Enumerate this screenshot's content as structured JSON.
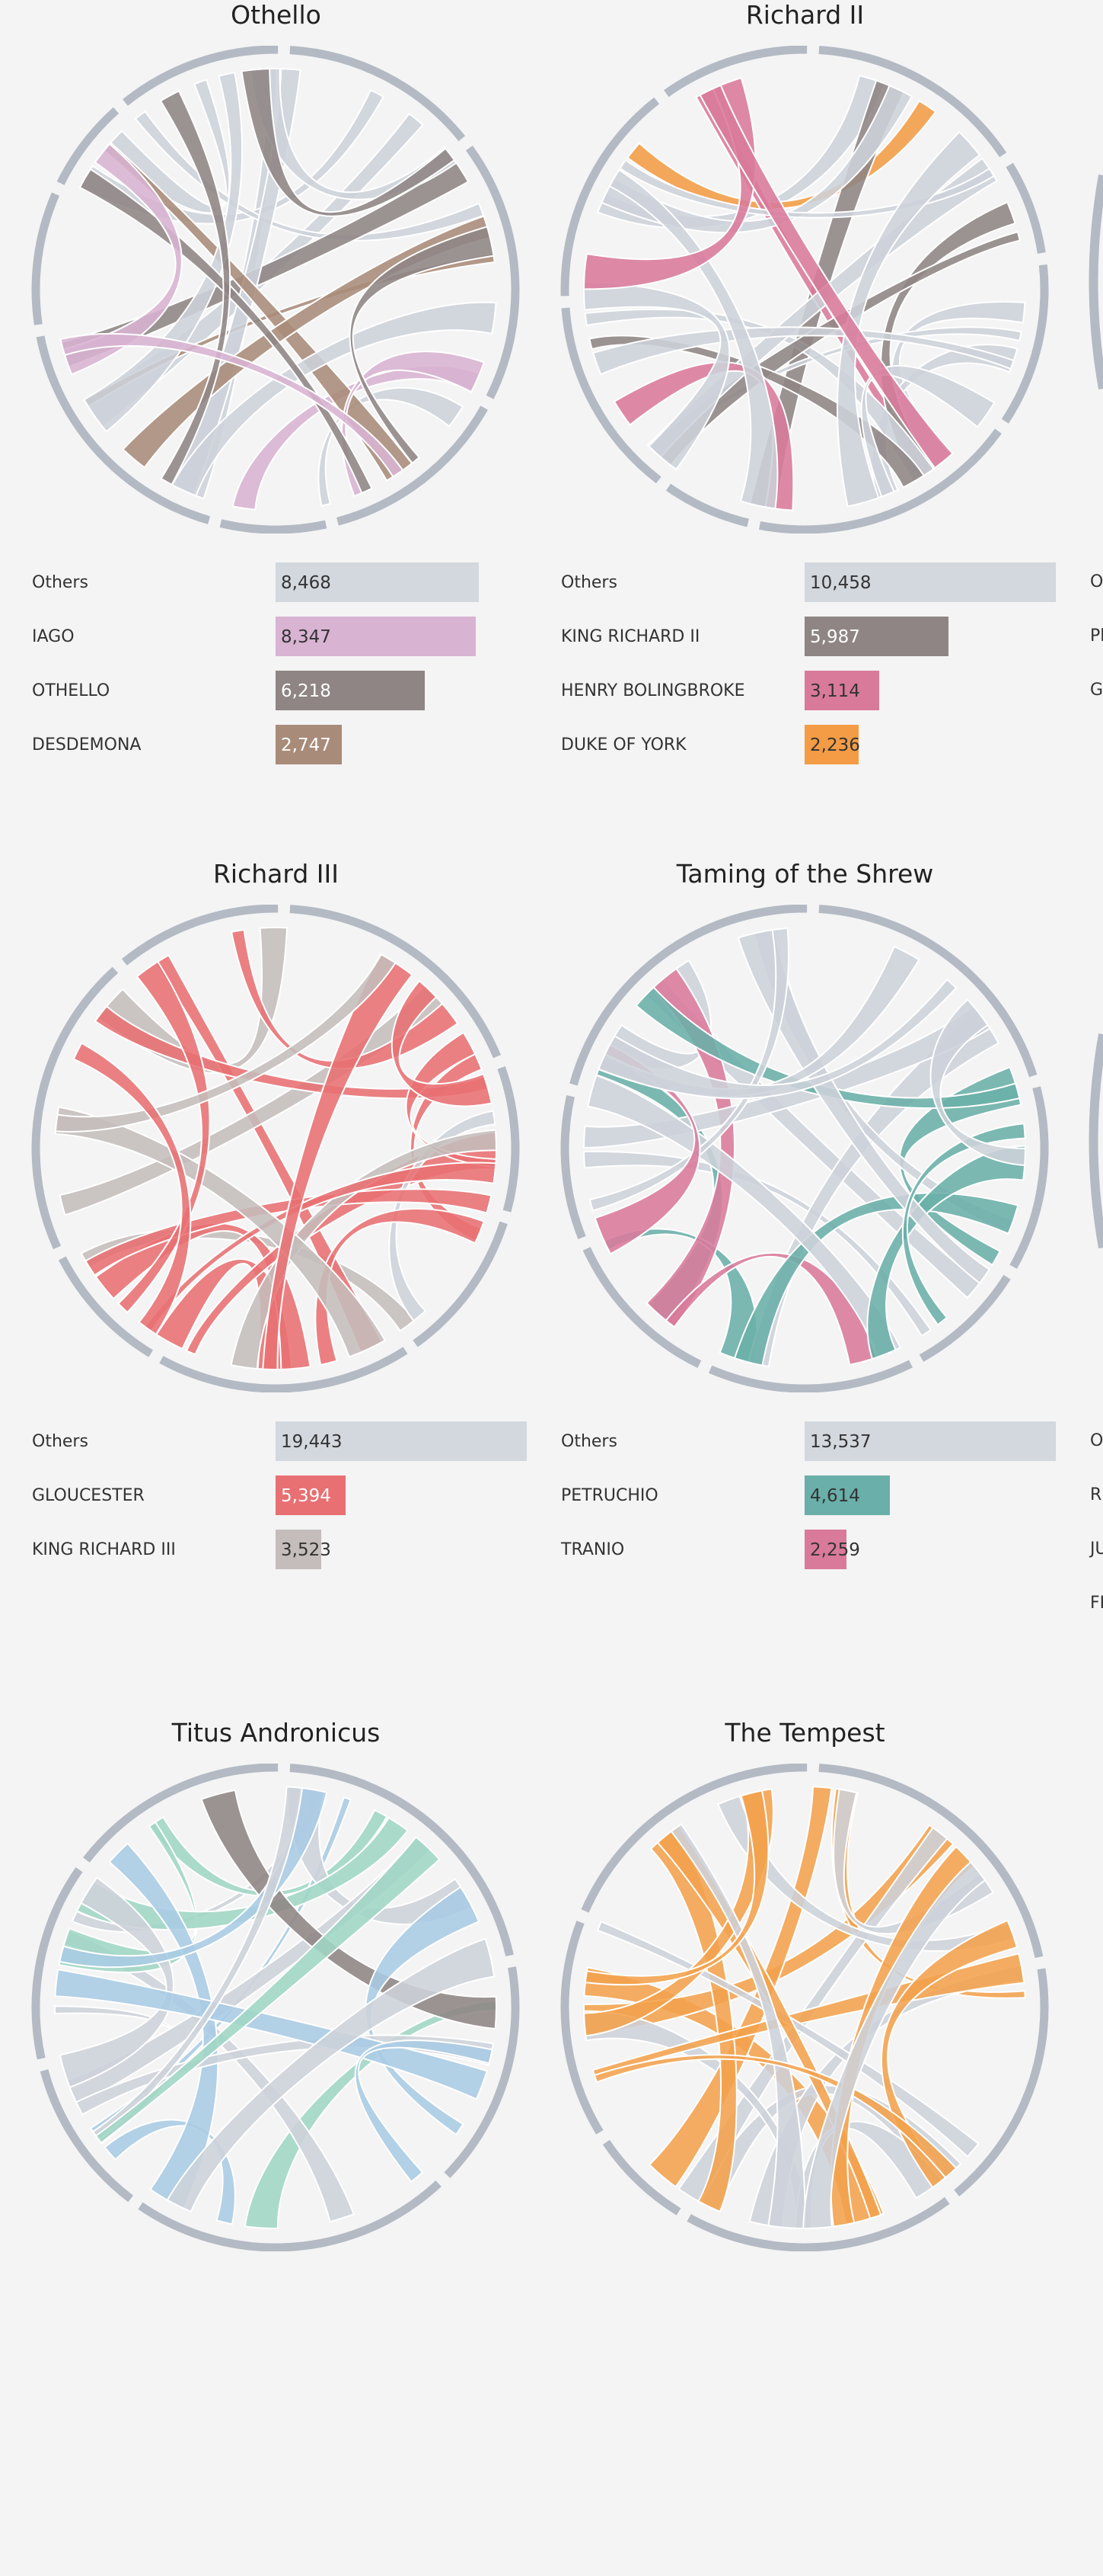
{
  "chart_data": [
    {
      "type": "bar",
      "title": "Othello",
      "categories": [
        "Others",
        "IAGO",
        "OTHELLO",
        "DESDEMONA"
      ],
      "values": [
        8468,
        8347,
        6218,
        2747
      ],
      "value_labels": [
        "8,468",
        "8,347",
        "6,218",
        "2,747"
      ],
      "colors": [
        "#d3d8df",
        "#d8b3d2",
        "#8e8584",
        "#a88b79"
      ],
      "text_colors": [
        "#333333",
        "#333333",
        "#ffffff",
        "#ffffff"
      ],
      "max": 10458
    },
    {
      "type": "bar",
      "title": "Richard II",
      "categories": [
        "Others",
        "KING RICHARD II",
        "HENRY BOLINGBROKE",
        "DUKE OF YORK"
      ],
      "values": [
        10458,
        5987,
        3114,
        2236
      ],
      "value_labels": [
        "10,458",
        "5,987",
        "3,114",
        "2,236"
      ],
      "colors": [
        "#d3d8df",
        "#8e8584",
        "#d97a9b",
        "#f39c45"
      ],
      "text_colors": [
        "#333333",
        "#ffffff",
        "#333333",
        "#333333"
      ],
      "max": 10458
    },
    {
      "type": "bar",
      "title": "Richard III",
      "categories": [
        "Others",
        "GLOUCESTER",
        "KING RICHARD III"
      ],
      "values": [
        19443,
        5394,
        3523
      ],
      "value_labels": [
        "19,443",
        "5,394",
        "3,523"
      ],
      "colors": [
        "#d3d8df",
        "#e86f72",
        "#c4bdbb"
      ],
      "text_colors": [
        "#333333",
        "#ffffff",
        "#333333"
      ],
      "max": 19443
    },
    {
      "type": "bar",
      "title": "Taming of the Shrew",
      "categories": [
        "Others",
        "PETRUCHIO",
        "TRANIO"
      ],
      "values": [
        13537,
        4614,
        2259
      ],
      "value_labels": [
        "13,537",
        "4,614",
        "2,259"
      ],
      "colors": [
        "#d3d8df",
        "#6aafa9",
        "#d97a9b"
      ],
      "text_colors": [
        "#333333",
        "#333333",
        "#333333"
      ],
      "max": 13537
    },
    {
      "type": "bar",
      "title": "Titus Andronicus",
      "categories": [],
      "values": [],
      "value_labels": [],
      "colors": [
        "#d3d8df",
        "#8e8584",
        "#9fd6c4",
        "#a9cbe4"
      ],
      "text_colors": [],
      "max": 1
    },
    {
      "type": "bar",
      "title": "The Tempest",
      "categories": [],
      "values": [],
      "value_labels": [],
      "colors": [
        "#d3d8df",
        "#f3a24c"
      ],
      "text_colors": [],
      "max": 1
    }
  ],
  "edge_labels": [
    "O",
    "Pl",
    "G",
    "O",
    "R",
    "JU",
    "FI"
  ]
}
